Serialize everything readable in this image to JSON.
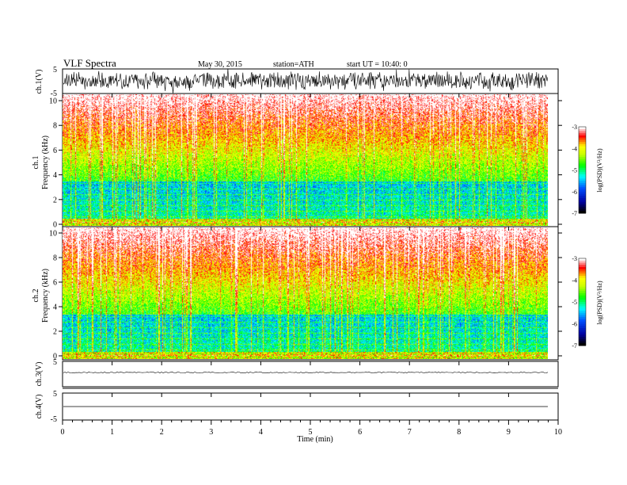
{
  "header": {
    "title": "VLF  Spectra",
    "date": "May 30, 2015",
    "station": "station=ATH",
    "start": "start  UT =   10:40: 0"
  },
  "chart_data": [
    {
      "type": "line",
      "name": "ch1-waveform",
      "ylabel": "ch.1(V)",
      "ylim": [
        -5,
        5
      ],
      "yticks": [
        "5",
        "-5"
      ],
      "xlim": [
        0,
        10
      ]
    },
    {
      "type": "heatmap",
      "name": "ch1-spectrogram",
      "ylabel": "ch.1",
      "ylabel2": "Frequency  (kHz)",
      "ylim": [
        0,
        10
      ],
      "yticks": [
        "0",
        "2",
        "4",
        "6",
        "8",
        "10"
      ],
      "xlim": [
        0,
        10
      ],
      "colorbar": {
        "label": "log(PSD)(V²/Hz)",
        "range": [
          -7,
          -3
        ],
        "ticks": [
          "-3",
          "-4",
          "-5",
          "-6",
          "-7"
        ]
      }
    },
    {
      "type": "heatmap",
      "name": "ch2-spectrogram",
      "ylabel": "ch.2",
      "ylabel2": "Frequency  (kHz)",
      "ylim": [
        0,
        10
      ],
      "yticks": [
        "0",
        "2",
        "4",
        "6",
        "8",
        "10"
      ],
      "xlim": [
        0,
        10
      ],
      "colorbar": {
        "label": "log(PSD)(V²/Hz)",
        "range": [
          -7,
          -3
        ],
        "ticks": [
          "-3",
          "-4",
          "-5",
          "-6",
          "-7"
        ]
      }
    },
    {
      "type": "line",
      "name": "ch3-waveform",
      "ylabel": "ch.3(V)",
      "ylim": [
        -5,
        5
      ],
      "yticks": [
        "5",
        "-5"
      ],
      "xlim": [
        0,
        10
      ]
    },
    {
      "type": "line",
      "name": "ch4-waveform",
      "ylabel": "ch.4(V)",
      "ylim": [
        -5,
        5
      ],
      "yticks": [
        "5",
        "-5"
      ],
      "xlim": [
        0,
        10
      ]
    }
  ],
  "xaxis": {
    "label": "Time  (min)",
    "ticks": [
      "0",
      "1",
      "2",
      "3",
      "4",
      "5",
      "6",
      "7",
      "8",
      "9",
      "10"
    ]
  },
  "colors": {
    "high": "#ff0000",
    "mid_high": "#ffff00",
    "mid": "#00ff00",
    "mid_low": "#00ffff",
    "low": "#0000ff",
    "floor": "#000000"
  }
}
